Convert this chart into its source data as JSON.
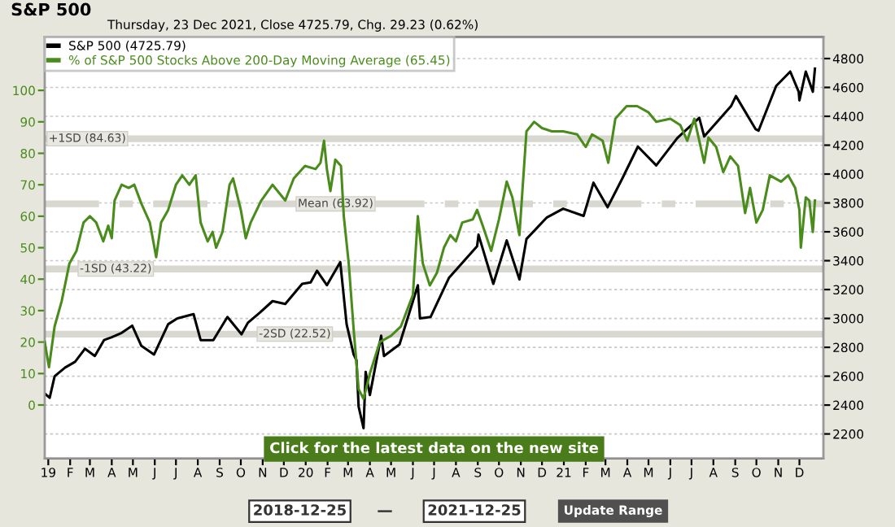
{
  "chart_data": {
    "type": "line",
    "title": "S&P 500",
    "subtitle": "Thursday, 23 Dec 2021, Close 4725.79, Chg. 29.23 (0.62%)",
    "annotations": [
      "Click for the latest data on the new site",
      "2018-12-25",
      "—",
      "2021-12-25",
      "Update Range"
    ],
    "series": [
      {
        "name": "S&P 500 (4725.79)",
        "color": "#000000",
        "axis": "y2",
        "x": [
          "2018-12-27",
          "2019-01-03",
          "2019-01-10",
          "2019-01-25",
          "2019-02-08",
          "2019-02-22",
          "2019-03-08",
          "2019-03-21",
          "2019-04-01",
          "2019-04-15",
          "2019-04-30",
          "2019-05-13",
          "2019-05-31",
          "2019-06-20",
          "2019-07-03",
          "2019-07-26",
          "2019-08-05",
          "2019-08-15",
          "2019-08-23",
          "2019-09-12",
          "2019-10-02",
          "2019-10-11",
          "2019-10-28",
          "2019-11-15",
          "2019-12-03",
          "2019-12-27",
          "2020-01-08",
          "2020-01-17",
          "2020-01-31",
          "2020-02-19",
          "2020-02-28",
          "2020-03-09",
          "2020-03-13",
          "2020-03-16",
          "2020-03-23",
          "2020-03-26",
          "2020-04-01",
          "2020-04-17",
          "2020-04-21",
          "2020-05-13",
          "2020-06-08",
          "2020-06-11",
          "2020-06-26",
          "2020-07-22",
          "2020-08-31",
          "2020-09-02",
          "2020-09-23",
          "2020-10-12",
          "2020-10-30",
          "2020-11-09",
          "2020-12-08",
          "2020-12-31",
          "2021-01-29",
          "2021-02-12",
          "2021-03-04",
          "2021-03-26",
          "2021-04-16",
          "2021-05-12",
          "2021-06-11",
          "2021-07-12",
          "2021-07-19",
          "2021-08-26",
          "2021-09-02",
          "2021-09-30",
          "2021-10-04",
          "2021-10-29",
          "2021-11-18",
          "2021-11-30",
          "2021-12-01",
          "2021-12-10",
          "2021-12-20",
          "2021-12-23"
        ],
        "values": [
          2480,
          2450,
          2600,
          2660,
          2700,
          2790,
          2740,
          2850,
          2870,
          2900,
          2950,
          2810,
          2750,
          2960,
          3000,
          3030,
          2850,
          2850,
          2850,
          3010,
          2890,
          2970,
          3040,
          3120,
          3100,
          3240,
          3250,
          3330,
          3230,
          3390,
          2960,
          2750,
          2710,
          2390,
          2240,
          2630,
          2470,
          2880,
          2740,
          2820,
          3230,
          3000,
          3010,
          3280,
          3500,
          3580,
          3240,
          3540,
          3270,
          3550,
          3700,
          3760,
          3710,
          3940,
          3770,
          3980,
          4190,
          4060,
          4250,
          4390,
          4260,
          4470,
          4540,
          4310,
          4300,
          4610,
          4710,
          4570,
          4510,
          4710,
          4570,
          4730
        ]
      },
      {
        "name": "% of S&P 500 Stocks Above 200-Day Moving Average (65.45)",
        "color": "#4a8c1c",
        "x": [
          "2018-12-27",
          "2019-01-02",
          "2019-01-10",
          "2019-01-20",
          "2019-01-31",
          "2019-02-10",
          "2019-02-20",
          "2019-03-01",
          "2019-03-10",
          "2019-03-20",
          "2019-03-27",
          "2019-04-01",
          "2019-04-05",
          "2019-04-15",
          "2019-04-25",
          "2019-05-03",
          "2019-05-13",
          "2019-05-25",
          "2019-06-03",
          "2019-06-10",
          "2019-06-20",
          "2019-07-01",
          "2019-07-10",
          "2019-07-20",
          "2019-07-29",
          "2019-08-05",
          "2019-08-15",
          "2019-08-22",
          "2019-08-27",
          "2019-09-05",
          "2019-09-15",
          "2019-09-20",
          "2019-10-01",
          "2019-10-08",
          "2019-10-15",
          "2019-10-30",
          "2019-11-15",
          "2019-12-03",
          "2019-12-15",
          "2019-12-31",
          "2020-01-15",
          "2020-01-22",
          "2020-01-27",
          "2020-01-31",
          "2020-02-05",
          "2020-02-12",
          "2020-02-20",
          "2020-02-24",
          "2020-03-02",
          "2020-03-09",
          "2020-03-16",
          "2020-03-23",
          "2020-04-01",
          "2020-04-15",
          "2020-05-01",
          "2020-05-15",
          "2020-06-01",
          "2020-06-08",
          "2020-06-15",
          "2020-06-25",
          "2020-07-05",
          "2020-07-15",
          "2020-07-24",
          "2020-08-01",
          "2020-08-10",
          "2020-08-25",
          "2020-08-31",
          "2020-09-08",
          "2020-09-20",
          "2020-10-01",
          "2020-10-12",
          "2020-10-20",
          "2020-10-30",
          "2020-11-09",
          "2020-11-20",
          "2020-12-01",
          "2020-12-15",
          "2020-12-31",
          "2021-01-20",
          "2021-02-01",
          "2021-02-10",
          "2021-02-25",
          "2021-03-05",
          "2021-03-15",
          "2021-03-31",
          "2021-04-15",
          "2021-05-01",
          "2021-05-12",
          "2021-06-01",
          "2021-06-15",
          "2021-06-25",
          "2021-07-05",
          "2021-07-19",
          "2021-07-25",
          "2021-08-05",
          "2021-08-15",
          "2021-08-25",
          "2021-09-05",
          "2021-09-15",
          "2021-09-22",
          "2021-10-01",
          "2021-10-10",
          "2021-10-20",
          "2021-11-05",
          "2021-11-15",
          "2021-11-25",
          "2021-12-01",
          "2021-12-03",
          "2021-12-10",
          "2021-12-15",
          "2021-12-20",
          "2021-12-23"
        ],
        "values": [
          20,
          12,
          25,
          33,
          45,
          49,
          58,
          60,
          58,
          52,
          57,
          53,
          65,
          70,
          69,
          70,
          64,
          58,
          47,
          58,
          62,
          70,
          73,
          70,
          73,
          58,
          52,
          55,
          50,
          55,
          70,
          72,
          62,
          53,
          58,
          65,
          70,
          65,
          72,
          76,
          75,
          77,
          84,
          75,
          68,
          78,
          76,
          60,
          45,
          24,
          5,
          2,
          10,
          20,
          22,
          25,
          35,
          60,
          45,
          38,
          42,
          50,
          54,
          52,
          58,
          59,
          62,
          57,
          49,
          59,
          71,
          66,
          54,
          87,
          90,
          88,
          87,
          87,
          86,
          82,
          86,
          84,
          77,
          91,
          95,
          95,
          93,
          90,
          91,
          89,
          84,
          91,
          77,
          85,
          82,
          74,
          79,
          76,
          61,
          69,
          58,
          62,
          73,
          71,
          73,
          69,
          62,
          50,
          66,
          65,
          55,
          65
        ]
      }
    ],
    "ref_lines": [
      {
        "axis": "y",
        "value": 84.63,
        "label": "+1SD (84.63)",
        "color": "#d8d8d0",
        "line_style": "solid"
      },
      {
        "axis": "y",
        "value": 63.92,
        "label": "Mean (63.92)",
        "color": "#d8d8d0",
        "line_style": "dashed"
      },
      {
        "axis": "y",
        "value": 43.22,
        "label": "-1SD (43.22)",
        "color": "#d8d8d0",
        "line_style": "solid"
      },
      {
        "axis": "y",
        "value": 22.52,
        "label": "-2SD (22.52)",
        "color": "#d8d8d0",
        "line_style": "solid"
      }
    ],
    "xlim": [
      "2018-12-27",
      "2022-01-04"
    ],
    "xticks": [
      {
        "value": "2019-01-01",
        "label": "19"
      },
      {
        "value": "2019-02-01",
        "label": "F"
      },
      {
        "value": "2019-03-01",
        "label": "M"
      },
      {
        "value": "2019-04-01",
        "label": "A"
      },
      {
        "value": "2019-05-01",
        "label": "M"
      },
      {
        "value": "2019-06-01",
        "label": "J"
      },
      {
        "value": "2019-07-01",
        "label": "J"
      },
      {
        "value": "2019-08-01",
        "label": "A"
      },
      {
        "value": "2019-09-01",
        "label": "S"
      },
      {
        "value": "2019-10-01",
        "label": "O"
      },
      {
        "value": "2019-11-01",
        "label": "N"
      },
      {
        "value": "2019-12-01",
        "label": "D"
      },
      {
        "value": "2020-01-01",
        "label": "20"
      },
      {
        "value": "2020-02-01",
        "label": "F"
      },
      {
        "value": "2020-03-01",
        "label": "M"
      },
      {
        "value": "2020-04-01",
        "label": "A"
      },
      {
        "value": "2020-05-01",
        "label": "M"
      },
      {
        "value": "2020-06-01",
        "label": "J"
      },
      {
        "value": "2020-07-01",
        "label": "J"
      },
      {
        "value": "2020-08-01",
        "label": "A"
      },
      {
        "value": "2020-09-01",
        "label": "S"
      },
      {
        "value": "2020-10-01",
        "label": "O"
      },
      {
        "value": "2020-11-01",
        "label": "N"
      },
      {
        "value": "2020-12-01",
        "label": "D"
      },
      {
        "value": "2021-01-01",
        "label": "21"
      },
      {
        "value": "2021-02-01",
        "label": "F"
      },
      {
        "value": "2021-03-01",
        "label": "M"
      },
      {
        "value": "2021-04-01",
        "label": "A"
      },
      {
        "value": "2021-05-01",
        "label": "M"
      },
      {
        "value": "2021-06-01",
        "label": "J"
      },
      {
        "value": "2021-07-01",
        "label": "J"
      },
      {
        "value": "2021-08-01",
        "label": "A"
      },
      {
        "value": "2021-09-01",
        "label": "S"
      },
      {
        "value": "2021-10-01",
        "label": "O"
      },
      {
        "value": "2021-11-01",
        "label": "N"
      },
      {
        "value": "2021-12-01",
        "label": "D"
      }
    ],
    "ylim": [
      -17,
      117
    ],
    "yticks": [
      0,
      10,
      20,
      30,
      40,
      50,
      60,
      70,
      80,
      90,
      100
    ],
    "y2lim": [
      2030,
      4950
    ],
    "y2ticks": [
      2200,
      2400,
      2600,
      2800,
      3000,
      3200,
      3400,
      3600,
      3800,
      4000,
      4200,
      4400,
      4600,
      4800
    ],
    "grid": true,
    "legend": "top left",
    "marker": "none",
    "line_style": "solid"
  }
}
